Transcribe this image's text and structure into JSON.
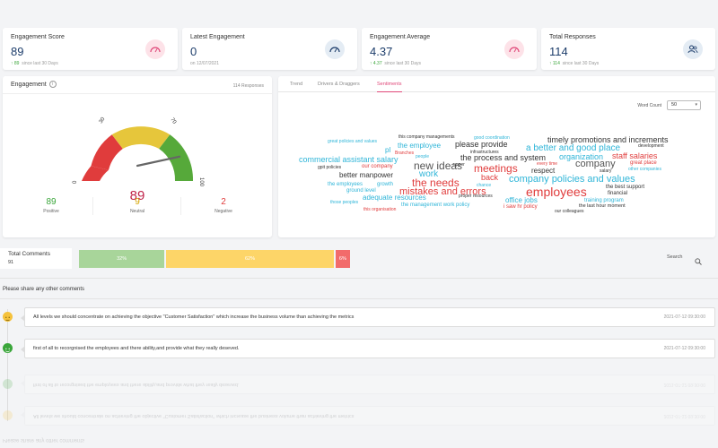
{
  "kpis": [
    {
      "title": "Engagement Score",
      "value": "89",
      "sub_arrow": "↑",
      "sub_value": "89",
      "sub_text": "since last 30 Days",
      "icon": "gauge-icon",
      "icon_bg": "#fde2e8",
      "icon_color": "#e0497a"
    },
    {
      "title": "Latest Engagement",
      "value": "0",
      "sub_text": "on 12/07/2021",
      "icon": "gauge-icon",
      "icon_bg": "#e4ecf4",
      "icon_color": "#1d3d6b"
    },
    {
      "title": "Engagement Average",
      "value": "4.37",
      "sub_arrow": "↑",
      "sub_value": "4.37",
      "sub_text": "since last 30 Days",
      "icon": "gauge-icon",
      "icon_bg": "#fde2e8",
      "icon_color": "#e0497a"
    },
    {
      "title": "Total Responses",
      "value": "114",
      "sub_arrow": "↑",
      "sub_value": "114",
      "sub_text": "since last 30 Days",
      "icon": "users-icon",
      "icon_bg": "#e4ecf4",
      "icon_color": "#1d3d6b"
    }
  ],
  "engagement": {
    "title": "Engagement",
    "responses": "114 Responses",
    "gauge": {
      "min": "0",
      "t30": "30",
      "t70": "70",
      "max": "100",
      "value": "89",
      "value_fraction": 0.89
    },
    "stats": [
      {
        "value": "89",
        "label": "Positive",
        "color": "#3aa63a"
      },
      {
        "value": "9",
        "label": "Neutral",
        "color": "#d6a500"
      },
      {
        "value": "2",
        "label": "Negative",
        "color": "#e03c3c"
      }
    ]
  },
  "tabs": [
    "Trend",
    "Drivers & Draggers",
    "Sentiments"
  ],
  "active_tab": "Sentiments",
  "word_count": {
    "label": "Word Count",
    "value": "50"
  },
  "words": [
    {
      "t": "good coordination",
      "c": "#2fb5d8"
    },
    {
      "t": "this company managements",
      "c": "#333"
    },
    {
      "t": "great policies and values",
      "c": "#2fb5d8"
    },
    {
      "t": "please provide",
      "c": "#333"
    },
    {
      "t": "timely promotions and increments",
      "c": "#333"
    },
    {
      "t": "the employee",
      "c": "#2fb5d8"
    },
    {
      "t": "pl",
      "c": "#2fb5d8"
    },
    {
      "t": "Branches",
      "c": "#e03c3c"
    },
    {
      "t": "infrastructures",
      "c": "#333"
    },
    {
      "t": "a better and good place",
      "c": "#2fb5d8"
    },
    {
      "t": "development",
      "c": "#333"
    },
    {
      "t": "commercial assistant salary",
      "c": "#2fb5d8"
    },
    {
      "t": "people",
      "c": "#2fb5d8"
    },
    {
      "t": "the process and system",
      "c": "#333"
    },
    {
      "t": "organization",
      "c": "#2fb5d8"
    },
    {
      "t": "staff salaries",
      "c": "#e03c3c"
    },
    {
      "t": "new ideas",
      "c": "#555"
    },
    {
      "t": "upper",
      "c": "#333"
    },
    {
      "t": "every time",
      "c": "#e03c3c"
    },
    {
      "t": "company",
      "c": "#555"
    },
    {
      "t": "great place",
      "c": "#e03c3c"
    },
    {
      "t": "gpit policies",
      "c": "#333"
    },
    {
      "t": "our company",
      "c": "#e03c3c"
    },
    {
      "t": "meetings",
      "c": "#e03c3c"
    },
    {
      "t": "respect",
      "c": "#333"
    },
    {
      "t": "salary",
      "c": "#333"
    },
    {
      "t": "other companies",
      "c": "#2fb5d8"
    },
    {
      "t": "better manpower",
      "c": "#333"
    },
    {
      "t": "work",
      "c": "#2fb5d8"
    },
    {
      "t": "back",
      "c": "#e03c3c"
    },
    {
      "t": "company policies and values",
      "c": "#2fb5d8"
    },
    {
      "t": "the employees",
      "c": "#2fb5d8"
    },
    {
      "t": "growth",
      "c": "#2fb5d8"
    },
    {
      "t": "the needs",
      "c": "#e03c3c"
    },
    {
      "t": "chance",
      "c": "#2fb5d8"
    },
    {
      "t": "the best support",
      "c": "#333"
    },
    {
      "t": "ground level",
      "c": "#2fb5d8"
    },
    {
      "t": "mistakes and errors",
      "c": "#e03c3c"
    },
    {
      "t": "employees",
      "c": "#e03c3c"
    },
    {
      "t": "financial",
      "c": "#333"
    },
    {
      "t": "adequate resources",
      "c": "#2fb5d8"
    },
    {
      "t": "proper resources",
      "c": "#333"
    },
    {
      "t": "office jobs",
      "c": "#2fb5d8"
    },
    {
      "t": "training program",
      "c": "#2fb5d8"
    },
    {
      "t": "those peoples",
      "c": "#2fb5d8"
    },
    {
      "t": "the management work policy",
      "c": "#2fb5d8"
    },
    {
      "t": "i saw hr policy",
      "c": "#e03c3c"
    },
    {
      "t": "the last hour moment",
      "c": "#333"
    },
    {
      "t": "this organisation",
      "c": "#e03c3c"
    },
    {
      "t": "our colleagues",
      "c": "#333"
    }
  ],
  "totals": {
    "label": "Total Comments",
    "count": "91",
    "bars": [
      {
        "label": "32%",
        "value": 32,
        "color": "#a8d59a"
      },
      {
        "label": "62%",
        "value": 62,
        "color": "#fdd568"
      },
      {
        "label": "6%",
        "value": 6,
        "color": "#f26b6b"
      }
    ],
    "search_label": "Search"
  },
  "prompt": "Please share any other comments",
  "comments": [
    {
      "text": "All levels we should concentrate on achieving the objective \"Customer Satisfaction\" which increase the business volume than achieving the metrics",
      "date": "2021-07-12 09:30:00",
      "mood": "neutral-face-icon",
      "color": "#f5c23c"
    },
    {
      "text": "first of all to recorgnised the employees and there ability,and provide what they really deseved.",
      "date": "2021-07-12 09:30:00",
      "mood": "happy-face-icon",
      "color": "#3aa63a"
    }
  ]
}
